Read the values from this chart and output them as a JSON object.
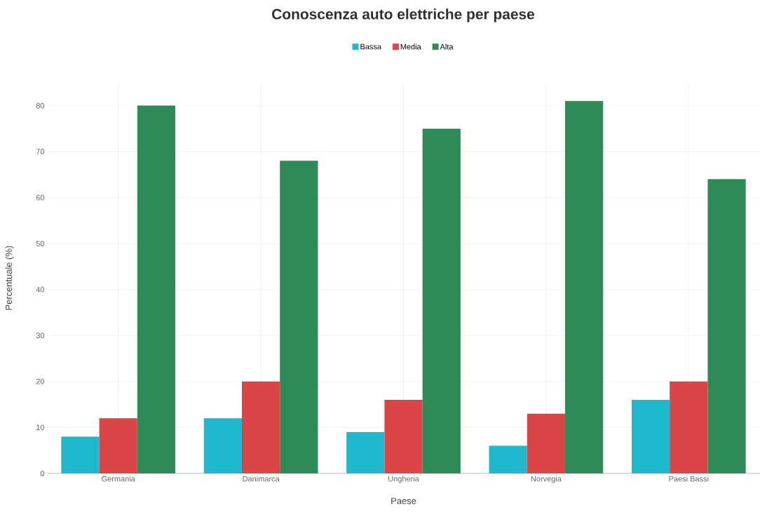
{
  "chart_data": {
    "type": "bar",
    "title": "Conoscenza auto elettriche per paese",
    "xlabel": "Paese",
    "ylabel": "Percentuale (%)",
    "categories": [
      "Germania",
      "Danimarca",
      "Ungheria",
      "Norvegia",
      "Paesi Bassi"
    ],
    "series": [
      {
        "name": "Bassa",
        "color": "#1fb8cd",
        "values": [
          8,
          12,
          9,
          6,
          16
        ]
      },
      {
        "name": "Media",
        "color": "#db4545",
        "values": [
          12,
          20,
          16,
          13,
          20
        ]
      },
      {
        "name": "Alta",
        "color": "#2e8b57",
        "values": [
          80,
          68,
          75,
          81,
          64
        ]
      }
    ],
    "ylim": [
      0,
      85
    ],
    "yticks": [
      0,
      10,
      20,
      30,
      40,
      50,
      60,
      70,
      80
    ],
    "grid": true,
    "legend": "top"
  }
}
